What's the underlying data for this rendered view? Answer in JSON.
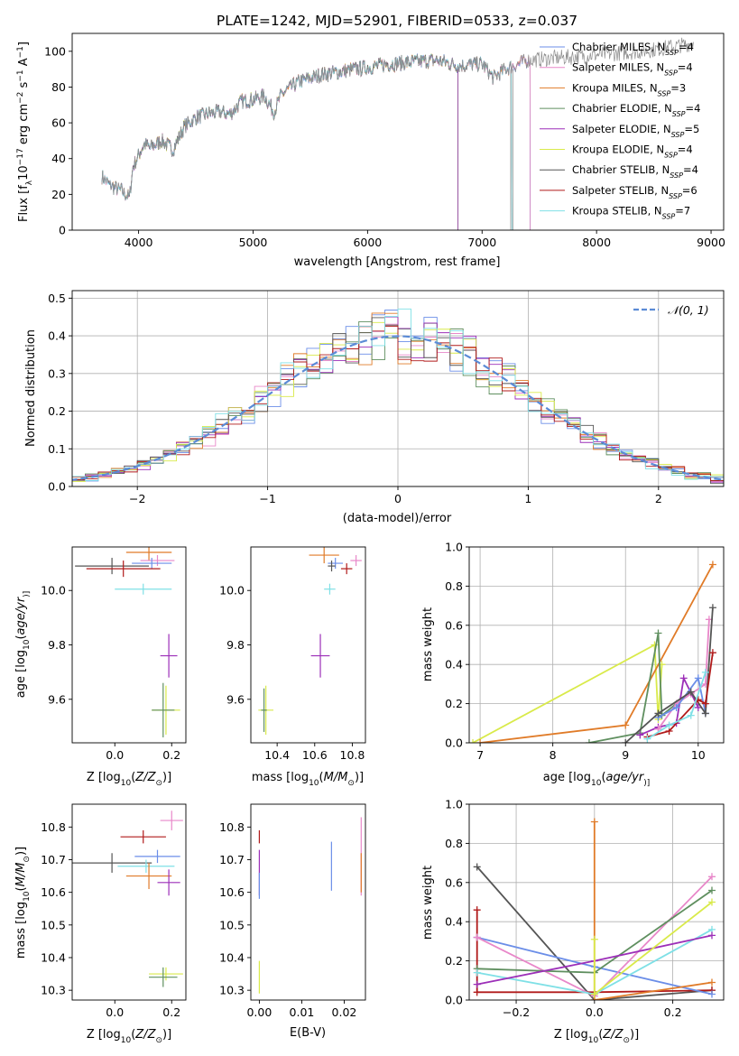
{
  "colors": {
    "Chabrier MILES": "#6b8ee8",
    "Salpeter MILES": "#e887c9",
    "Kroupa MILES": "#e07b28",
    "Chabrier ELODIE": "#5f8f5f",
    "Salpeter ELODIE": "#9c2fb8",
    "Kroupa ELODIE": "#d9ea4a",
    "Chabrier STELIB": "#555555",
    "Salpeter STELIB": "#b11a1a",
    "Kroupa STELIB": "#7fe0e6"
  },
  "chart_data": [
    {
      "id": "spectrum",
      "type": "line",
      "title": "PLATE=1242, MJD=52901, FIBERID=0533, z=0.037",
      "xlabel": "wavelength [Angstrom, rest frame]",
      "ylabel_parts": [
        "Flux [f",
        "λ",
        "10",
        "−17",
        " erg cm",
        "−2",
        " s",
        "−1",
        " A",
        "−1",
        "]"
      ],
      "xlim": [
        3420,
        9110
      ],
      "ylim": [
        0,
        110
      ],
      "xticks": [
        4000,
        5000,
        6000,
        7000,
        8000,
        9000
      ],
      "yticks": [
        0,
        20,
        40,
        60,
        80,
        100
      ],
      "legend_position": "upper-right",
      "legend": [
        {
          "label": "Chabrier MILES, N",
          "sub": "SSP",
          "suffix": "=4"
        },
        {
          "label": "Salpeter MILES, N",
          "sub": "SSP",
          "suffix": "=4"
        },
        {
          "label": "Kroupa MILES, N",
          "sub": "SSP",
          "suffix": "=3"
        },
        {
          "label": "Chabrier ELODIE, N",
          "sub": "SSP",
          "suffix": "=4"
        },
        {
          "label": "Salpeter ELODIE, N",
          "sub": "SSP",
          "suffix": "=5"
        },
        {
          "label": "Kroupa ELODIE, N",
          "sub": "SSP",
          "suffix": "=4"
        },
        {
          "label": "Chabrier STELIB, N",
          "sub": "SSP",
          "suffix": "=4"
        },
        {
          "label": "Salpeter STELIB, N",
          "sub": "SSP",
          "suffix": "=6"
        },
        {
          "label": "Kroupa STELIB, N",
          "sub": "SSP",
          "suffix": "=7"
        }
      ],
      "spectrum_points": [
        [
          3680,
          30
        ],
        [
          3750,
          25
        ],
        [
          3850,
          22
        ],
        [
          3920,
          18
        ],
        [
          3950,
          35
        ],
        [
          4000,
          42
        ],
        [
          4050,
          48
        ],
        [
          4100,
          46
        ],
        [
          4200,
          50
        ],
        [
          4300,
          45
        ],
        [
          4400,
          58
        ],
        [
          4500,
          63
        ],
        [
          4600,
          65
        ],
        [
          4700,
          66
        ],
        [
          4800,
          65
        ],
        [
          4900,
          72
        ],
        [
          5000,
          73
        ],
        [
          5100,
          75
        ],
        [
          5180,
          66
        ],
        [
          5250,
          76
        ],
        [
          5400,
          83
        ],
        [
          5600,
          87
        ],
        [
          5800,
          89
        ],
        [
          6000,
          91
        ],
        [
          6200,
          93
        ],
        [
          6400,
          94
        ],
        [
          6600,
          95
        ],
        [
          6800,
          92
        ],
        [
          7000,
          93
        ],
        [
          7100,
          85
        ],
        [
          7200,
          90
        ],
        [
          7400,
          95
        ],
        [
          7600,
          96
        ],
        [
          8000,
          98
        ],
        [
          8400,
          100
        ],
        [
          8800,
          104
        ],
        [
          8850,
          105
        ]
      ],
      "model_cutoffs": [
        {
          "model": "Kroupa ELODIE",
          "start": 3920,
          "end": 6790
        },
        {
          "model": "Chabrier ELODIE",
          "start": 3920,
          "end": 6790
        },
        {
          "model": "Salpeter ELODIE",
          "start": 3920,
          "end": 6790
        },
        {
          "model": "Kroupa MILES",
          "start": 3680,
          "end": 7420
        },
        {
          "model": "Chabrier MILES",
          "start": 3680,
          "end": 7420
        },
        {
          "model": "Salpeter MILES",
          "start": 3680,
          "end": 7420
        },
        {
          "model": "Chabrier STELIB",
          "start": 3680,
          "end": 7260
        },
        {
          "model": "Kroupa STELIB",
          "start": 3680,
          "end": 7260
        }
      ]
    },
    {
      "id": "residuals",
      "type": "histogram",
      "xlabel": "(data-model)/error",
      "ylabel": "Normed distribution",
      "xlim": [
        -2.5,
        2.5
      ],
      "ylim": [
        0,
        0.52
      ],
      "xticks": [
        -2,
        -1,
        0,
        1,
        2
      ],
      "yticks": [
        0.0,
        0.1,
        0.2,
        0.3,
        0.4,
        0.5
      ],
      "grid": true,
      "legend_position": "upper-right",
      "reference_label": "𝒩(0, 1)"
    },
    {
      "id": "age_vs_Z",
      "type": "scatter",
      "xlabel_parts": [
        "Z [log",
        "10",
        "(",
        "Z/Z",
        "⊙",
        ")]"
      ],
      "ylabel_parts": [
        "age  [log",
        "10",
        "(",
        "age/yr",
        ")]"
      ],
      "xlim": [
        -0.15,
        0.25
      ],
      "ylim": [
        9.44,
        10.16
      ],
      "xticks": [
        0.0,
        0.2
      ],
      "yticks": [
        9.6,
        9.8,
        10.0
      ],
      "points": [
        {
          "model": "Kroupa MILES",
          "x": 0.12,
          "y": 10.14,
          "xerr": 0.08,
          "yerr": 0.03
        },
        {
          "model": "Salpeter MILES",
          "x": 0.15,
          "y": 10.11,
          "xerr": 0.06,
          "yerr": 0.02
        },
        {
          "model": "Chabrier MILES",
          "x": 0.13,
          "y": 10.1,
          "xerr": 0.07,
          "yerr": 0.02
        },
        {
          "model": "Chabrier STELIB",
          "x": -0.01,
          "y": 10.09,
          "xerr": 0.13,
          "yerr": 0.03
        },
        {
          "model": "Salpeter STELIB",
          "x": 0.03,
          "y": 10.08,
          "xerr": 0.13,
          "yerr": 0.03
        },
        {
          "model": "Kroupa STELIB",
          "x": 0.1,
          "y": 10.005,
          "xerr": 0.1,
          "yerr": 0.02
        },
        {
          "model": "Salpeter ELODIE",
          "x": 0.19,
          "y": 9.76,
          "xerr": 0.03,
          "yerr": 0.08
        },
        {
          "model": "Kroupa ELODIE",
          "x": 0.18,
          "y": 9.56,
          "xerr": 0.05,
          "yerr": 0.09
        },
        {
          "model": "Chabrier ELODIE",
          "x": 0.17,
          "y": 9.56,
          "xerr": 0.04,
          "yerr": 0.1
        }
      ]
    },
    {
      "id": "age_vs_mass",
      "type": "scatter",
      "xlabel_parts": [
        "mass [log",
        "10",
        "(",
        "M/M",
        "⊙",
        ")]"
      ],
      "xlim": [
        10.26,
        10.87
      ],
      "ylim": [
        9.44,
        10.16
      ],
      "xticks": [
        10.4,
        10.6,
        10.8
      ],
      "yticks": [
        9.6,
        9.8,
        10.0
      ],
      "points": [
        {
          "model": "Kroupa MILES",
          "x": 10.65,
          "y": 10.13,
          "xerr": 0.08,
          "yerr": 0.03
        },
        {
          "model": "Salpeter MILES",
          "x": 10.82,
          "y": 10.11,
          "xerr": 0.03,
          "yerr": 0.02
        },
        {
          "model": "Chabrier MILES",
          "x": 10.71,
          "y": 10.1,
          "xerr": 0.04,
          "yerr": 0.02
        },
        {
          "model": "Chabrier STELIB",
          "x": 10.69,
          "y": 10.09,
          "xerr": 0.02,
          "yerr": 0.02
        },
        {
          "model": "Salpeter STELIB",
          "x": 10.77,
          "y": 10.08,
          "xerr": 0.03,
          "yerr": 0.02
        },
        {
          "model": "Kroupa STELIB",
          "x": 10.68,
          "y": 10.005,
          "xerr": 0.03,
          "yerr": 0.02
        },
        {
          "model": "Salpeter ELODIE",
          "x": 10.63,
          "y": 9.76,
          "xerr": 0.05,
          "yerr": 0.08
        },
        {
          "model": "Kroupa ELODIE",
          "x": 10.34,
          "y": 9.56,
          "xerr": 0.04,
          "yerr": 0.09
        },
        {
          "model": "Chabrier ELODIE",
          "x": 10.33,
          "y": 9.56,
          "xerr": 0.015,
          "yerr": 0.08
        }
      ]
    },
    {
      "id": "massweight_vs_age",
      "type": "line",
      "xlabel_parts": [
        "age  [log",
        "10",
        "(",
        "age/yr",
        ")]"
      ],
      "ylabel": "mass weight",
      "xlim": [
        6.85,
        10.35
      ],
      "ylim": [
        0,
        1.0
      ],
      "xticks": [
        7,
        8,
        9,
        10
      ],
      "yticks": [
        0.0,
        0.2,
        0.4,
        0.6,
        0.8,
        1.0
      ],
      "grid": true,
      "series": [
        {
          "model": "Kroupa ELODIE",
          "x": [
            6.9,
            9.4,
            9.45,
            9.5
          ],
          "y": [
            0.0,
            0.5,
            0.12,
            0.4
          ]
        },
        {
          "model": "Kroupa MILES",
          "x": [
            7.0,
            9.0,
            10.2
          ],
          "y": [
            0.0,
            0.09,
            0.91
          ]
        },
        {
          "model": "Chabrier ELODIE",
          "x": [
            8.5,
            9.2,
            9.45,
            9.5,
            9.7
          ],
          "y": [
            0.0,
            0.05,
            0.56,
            0.14,
            0.2
          ]
        },
        {
          "model": "Salpeter ELODIE",
          "x": [
            9.2,
            9.45,
            9.7,
            9.8,
            10.0
          ],
          "y": [
            0.04,
            0.08,
            0.1,
            0.33,
            0.18
          ]
        },
        {
          "model": "Salpeter MILES",
          "x": [
            9.45,
            9.7,
            9.9,
            10.1,
            10.15
          ],
          "y": [
            0.07,
            0.2,
            0.25,
            0.3,
            0.63
          ]
        },
        {
          "model": "Chabrier MILES",
          "x": [
            9.45,
            9.7,
            10.0,
            10.1
          ],
          "y": [
            0.13,
            0.18,
            0.33,
            0.15
          ]
        },
        {
          "model": "Chabrier STELIB",
          "x": [
            9.0,
            9.45,
            9.9,
            10.1,
            10.2
          ],
          "y": [
            0.0,
            0.15,
            0.26,
            0.15,
            0.69
          ]
        },
        {
          "model": "Salpeter STELIB",
          "x": [
            9.3,
            9.6,
            10.0,
            10.1,
            10.2
          ],
          "y": [
            0.03,
            0.06,
            0.22,
            0.2,
            0.46
          ]
        },
        {
          "model": "Kroupa STELIB",
          "x": [
            9.3,
            9.6,
            9.9,
            10.1
          ],
          "y": [
            0.02,
            0.09,
            0.14,
            0.36
          ]
        }
      ]
    },
    {
      "id": "mass_vs_Z",
      "type": "scatter",
      "xlabel_parts": [
        "Z [log",
        "10",
        "(",
        "Z/Z",
        "⊙",
        ")]"
      ],
      "ylabel_parts": [
        "mass [log",
        "10",
        "(",
        "M/M",
        "⊙",
        ")]"
      ],
      "xlim": [
        -0.15,
        0.25
      ],
      "ylim": [
        10.27,
        10.87
      ],
      "xticks": [
        0.0,
        0.2
      ],
      "yticks": [
        10.3,
        10.4,
        10.5,
        10.6,
        10.7,
        10.8
      ],
      "points": [
        {
          "model": "Salpeter MILES",
          "x": 0.2,
          "y": 10.82,
          "xerr": 0.04,
          "yerr": 0.03
        },
        {
          "model": "Salpeter STELIB",
          "x": 0.1,
          "y": 10.77,
          "xerr": 0.08,
          "yerr": 0.02
        },
        {
          "model": "Chabrier MILES",
          "x": 0.15,
          "y": 10.71,
          "xerr": 0.08,
          "yerr": 0.02
        },
        {
          "model": "Chabrier STELIB",
          "x": -0.01,
          "y": 10.69,
          "xerr": 0.14,
          "yerr": 0.03
        },
        {
          "model": "Kroupa STELIB",
          "x": 0.11,
          "y": 10.68,
          "xerr": 0.1,
          "yerr": 0.02
        },
        {
          "model": "Kroupa MILES",
          "x": 0.12,
          "y": 10.65,
          "xerr": 0.08,
          "yerr": 0.04
        },
        {
          "model": "Salpeter ELODIE",
          "x": 0.19,
          "y": 10.63,
          "xerr": 0.04,
          "yerr": 0.04
        },
        {
          "model": "Kroupa ELODIE",
          "x": 0.18,
          "y": 10.35,
          "xerr": 0.06,
          "yerr": 0.02
        },
        {
          "model": "Chabrier ELODIE",
          "x": 0.17,
          "y": 10.34,
          "xerr": 0.05,
          "yerr": 0.03
        }
      ]
    },
    {
      "id": "mass_vs_ebv",
      "type": "scatter",
      "xlabel": "E(B-V)",
      "xlim": [
        -0.002,
        0.025
      ],
      "ylim": [
        10.27,
        10.87
      ],
      "xticks": [
        0.0,
        0.01,
        0.02
      ],
      "yticks": [
        10.3,
        10.4,
        10.5,
        10.6,
        10.7,
        10.8
      ],
      "points": [
        {
          "model": "Salpeter STELIB",
          "x": 0.0,
          "y": 10.77,
          "xerr": 0.0,
          "yerr": 0.02
        },
        {
          "model": "Salpeter ELODIE",
          "x": 0.0,
          "y": 10.66,
          "xerr": 0.0,
          "yerr": 0.07
        },
        {
          "model": "Chabrier MILES",
          "x": 0.0,
          "y": 10.62,
          "xerr": 0.0,
          "yerr": 0.04
        },
        {
          "model": "Kroupa ELODIE",
          "x": 0.0,
          "y": 10.34,
          "xerr": 0.0,
          "yerr": 0.05
        },
        {
          "model": "Chabrier MILES",
          "x": 0.017,
          "y": 10.68,
          "xerr": 0.0,
          "yerr": 0.075
        },
        {
          "model": "Salpeter MILES",
          "x": 0.024,
          "y": 10.71,
          "xerr": 0.0,
          "yerr": 0.12
        },
        {
          "model": "Kroupa MILES",
          "x": 0.024,
          "y": 10.66,
          "xerr": 0.0,
          "yerr": 0.06
        }
      ]
    },
    {
      "id": "massweight_vs_Z",
      "type": "line",
      "xlabel_parts": [
        "Z [log",
        "10",
        "(",
        "Z/Z",
        "⊙",
        ")]"
      ],
      "ylabel": "mass weight",
      "xlim": [
        -0.32,
        0.33
      ],
      "ylim": [
        0,
        1.0
      ],
      "xticks": [
        -0.2,
        0.0,
        0.2
      ],
      "yticks": [
        0.0,
        0.2,
        0.4,
        0.6,
        0.8,
        1.0
      ],
      "grid": true,
      "series": [
        {
          "model": "Chabrier STELIB",
          "x": [
            -0.3,
            0.0,
            0.3
          ],
          "y": [
            0.68,
            0.0,
            0.05
          ]
        },
        {
          "model": "Salpeter STELIB",
          "x": [
            -0.3,
            -0.3,
            0.0,
            0.3
          ],
          "y": [
            0.46,
            0.04,
            0.04,
            0.05
          ]
        },
        {
          "model": "Chabrier MILES",
          "x": [
            -0.3,
            0.0,
            0.3
          ],
          "y": [
            0.32,
            0.17,
            0.03
          ]
        },
        {
          "model": "Salpeter MILES",
          "x": [
            -0.3,
            0.0,
            0.3
          ],
          "y": [
            0.32,
            0.02,
            0.63
          ]
        },
        {
          "model": "Chabrier ELODIE",
          "x": [
            -0.3,
            0.0,
            0.3
          ],
          "y": [
            0.16,
            0.14,
            0.56
          ]
        },
        {
          "model": "Kroupa STELIB",
          "x": [
            -0.3,
            0.0,
            0.3
          ],
          "y": [
            0.14,
            0.03,
            0.36
          ]
        },
        {
          "model": "Salpeter ELODIE",
          "x": [
            -0.3,
            0.0,
            0.3
          ],
          "y": [
            0.08,
            0.2,
            0.33
          ]
        },
        {
          "model": "Kroupa MILES",
          "x": [
            0.0,
            0.0,
            0.3
          ],
          "y": [
            0.91,
            0.0,
            0.09
          ]
        },
        {
          "model": "Kroupa ELODIE",
          "x": [
            0.0,
            0.0,
            0.3
          ],
          "y": [
            0.31,
            0.03,
            0.5
          ]
        }
      ]
    }
  ]
}
